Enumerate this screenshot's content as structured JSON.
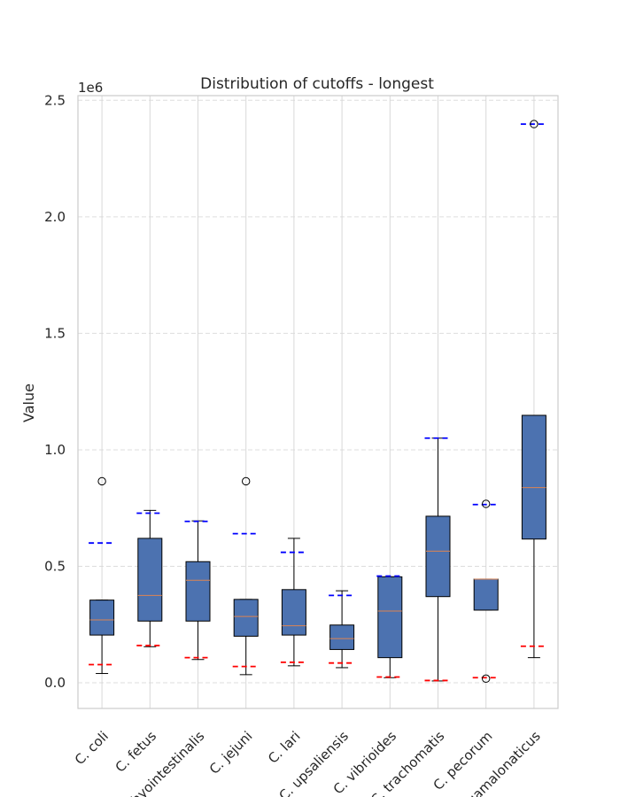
{
  "chart_data": {
    "type": "box",
    "title": "Distribution of cutoffs - longest",
    "xlabel": "",
    "ylabel": "Value",
    "y_multiplier_label": "1e6",
    "y_scale": 1000000,
    "ylim": [
      -110000,
      2520000
    ],
    "yticks": [
      0.0,
      0.5,
      1.0,
      1.5,
      2.0,
      2.5
    ],
    "ytick_labels": [
      "0.0",
      "0.5",
      "1.0",
      "1.5",
      "2.0",
      "2.5"
    ],
    "grid": true,
    "categories": [
      "C. coli",
      "C. fetus",
      "C. hyointestinalis",
      "C. jejuni",
      "C. lari",
      "C. upsaliensis",
      "C. vibrioides",
      "C. trachomatis",
      "C. pecorum",
      "C. gamalonaticus"
    ],
    "boxes": [
      {
        "whisker_low": 40000,
        "q1": 205000,
        "median": 270000,
        "q3": 355000,
        "whisker_high": 355000,
        "outliers": [
          865000
        ],
        "min_marker": 78000,
        "max_marker": 600000
      },
      {
        "whisker_low": 155000,
        "q1": 265000,
        "median": 375000,
        "q3": 620000,
        "whisker_high": 740000,
        "outliers": [],
        "min_marker": 160000,
        "max_marker": 728000
      },
      {
        "whisker_low": 100000,
        "q1": 265000,
        "median": 440000,
        "q3": 520000,
        "whisker_high": 695000,
        "outliers": [],
        "min_marker": 108000,
        "max_marker": 693000
      },
      {
        "whisker_low": 35000,
        "q1": 200000,
        "median": 285000,
        "q3": 358000,
        "whisker_high": 358000,
        "outliers": [
          865000
        ],
        "min_marker": 70000,
        "max_marker": 640000
      },
      {
        "whisker_low": 73000,
        "q1": 205000,
        "median": 245000,
        "q3": 400000,
        "whisker_high": 620000,
        "outliers": [],
        "min_marker": 88000,
        "max_marker": 560000
      },
      {
        "whisker_low": 65000,
        "q1": 143000,
        "median": 190000,
        "q3": 248000,
        "whisker_high": 395000,
        "outliers": [],
        "min_marker": 85000,
        "max_marker": 375000
      },
      {
        "whisker_low": 22000,
        "q1": 108000,
        "median": 308000,
        "q3": 455000,
        "whisker_high": 455000,
        "outliers": [],
        "min_marker": 25000,
        "max_marker": 458000
      },
      {
        "whisker_low": 8000,
        "q1": 370000,
        "median": 565000,
        "q3": 715000,
        "whisker_high": 1050000,
        "outliers": [],
        "min_marker": 10000,
        "max_marker": 1050000
      },
      {
        "whisker_low": 312000,
        "q1": 312000,
        "median": 445000,
        "q3": 445000,
        "whisker_high": 445000,
        "outliers": [
          768000,
          18000
        ],
        "min_marker": 22000,
        "max_marker": 765000
      },
      {
        "whisker_low": 108000,
        "q1": 617000,
        "median": 838000,
        "q3": 1148000,
        "whisker_high": 1148000,
        "outliers": [
          2398000
        ],
        "min_marker": 157000,
        "max_marker": 2398000
      }
    ],
    "colors": {
      "box": "#4c72b0",
      "median": "#dd8452",
      "min_marker": "#ff0000",
      "max_marker": "#0000ff",
      "grid": "#dddddd",
      "frame": "#cccccc"
    }
  }
}
